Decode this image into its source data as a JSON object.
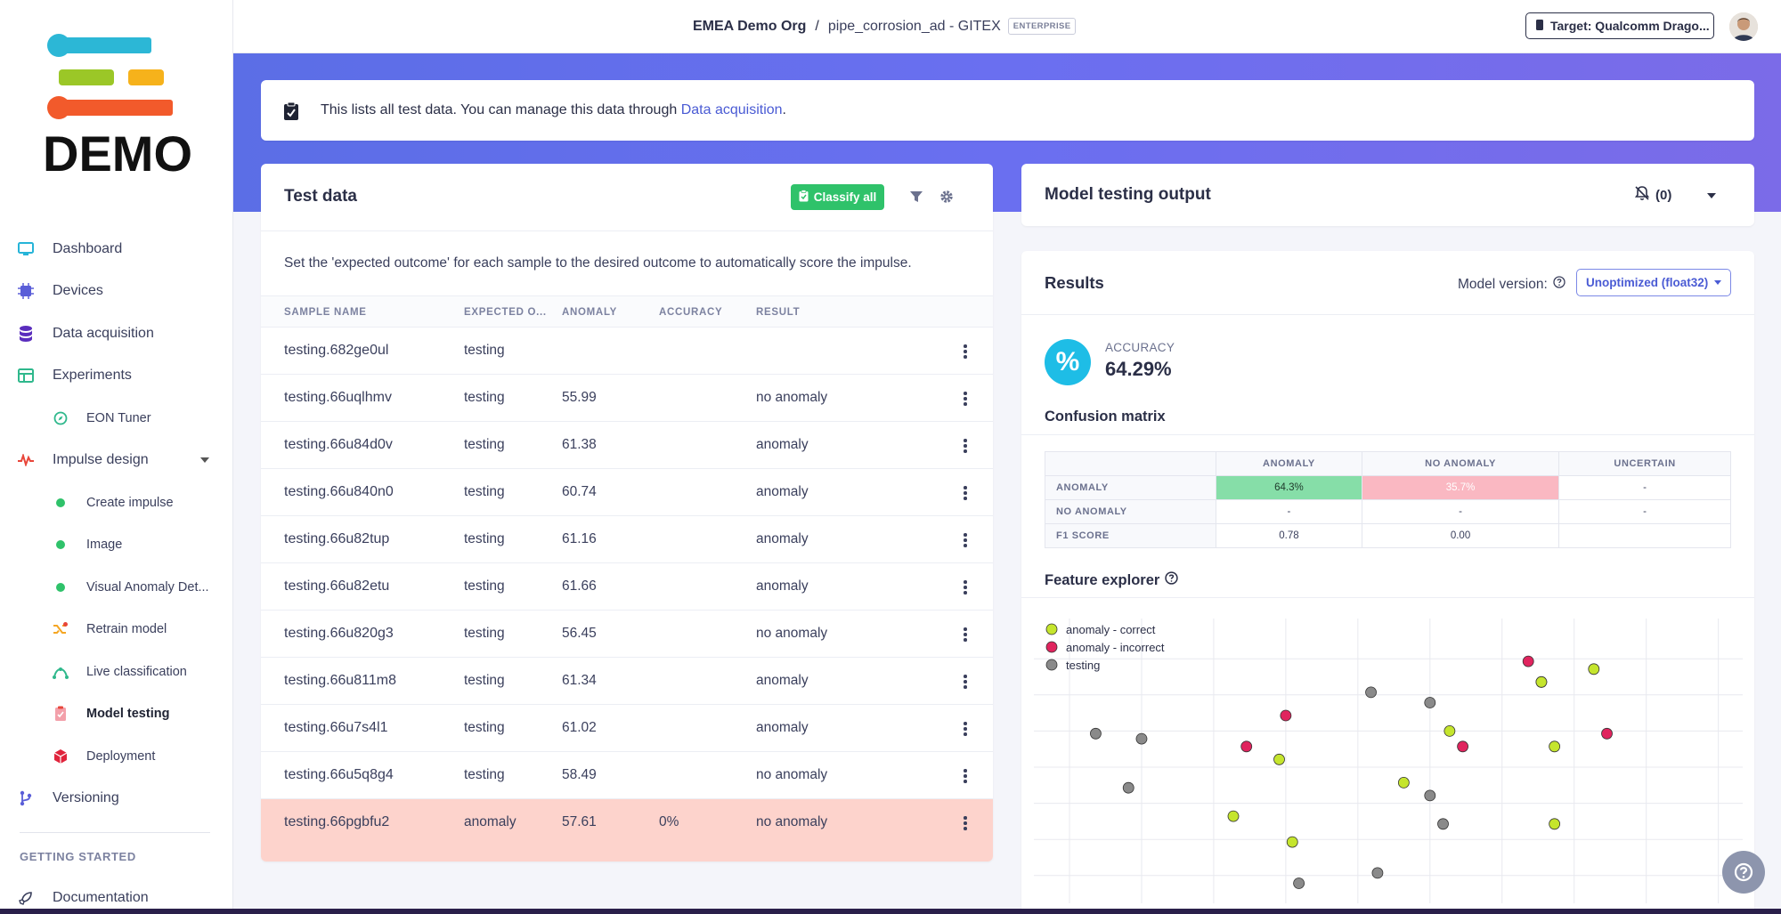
{
  "logo": {
    "text": "DEMO"
  },
  "sidebar": {
    "items": [
      {
        "label": "Dashboard",
        "icon": "monitor-icon"
      },
      {
        "label": "Devices",
        "icon": "chip-icon"
      },
      {
        "label": "Data acquisition",
        "icon": "database-icon"
      },
      {
        "label": "Experiments",
        "icon": "table-icon"
      },
      {
        "label": "EON Tuner",
        "icon": "compass-icon"
      },
      {
        "label": "Impulse design",
        "icon": "pulse-icon"
      },
      {
        "label": "Create impulse",
        "icon": "dot-icon"
      },
      {
        "label": "Image",
        "icon": "dot-icon"
      },
      {
        "label": "Visual Anomaly Det...",
        "icon": "dot-icon"
      },
      {
        "label": "Retrain model",
        "icon": "shuffle-icon"
      },
      {
        "label": "Live classification",
        "icon": "signal-icon"
      },
      {
        "label": "Model testing",
        "icon": "clipboard-icon"
      },
      {
        "label": "Deployment",
        "icon": "box-icon"
      },
      {
        "label": "Versioning",
        "icon": "branch-icon"
      }
    ],
    "section_label": "GETTING STARTED",
    "documentation": "Documentation"
  },
  "header": {
    "org": "EMEA Demo Org",
    "separator": "/",
    "project": "pipe_corrosion_ad - GITEX",
    "badge": "ENTERPRISE",
    "target": "Target: Qualcomm Drago..."
  },
  "info": {
    "text": "This lists all test data. You can manage this data through ",
    "link": "Data acquisition",
    "suffix": "."
  },
  "test_data": {
    "title": "Test data",
    "classify_label": "Classify all",
    "hint": "Set the 'expected outcome' for each sample to the desired outcome to automatically score the impulse.",
    "columns": [
      "SAMPLE NAME",
      "EXPECTED O...",
      "ANOMALY",
      "ACCURACY",
      "RESULT"
    ],
    "rows": [
      {
        "name": "testing.682ge0ul",
        "expected": "testing",
        "anomaly": "",
        "accuracy": "",
        "result": ""
      },
      {
        "name": "testing.66uqlhmv",
        "expected": "testing",
        "anomaly": "55.99",
        "accuracy": "",
        "result": "no anomaly"
      },
      {
        "name": "testing.66u84d0v",
        "expected": "testing",
        "anomaly": "61.38",
        "accuracy": "",
        "result": "anomaly"
      },
      {
        "name": "testing.66u840n0",
        "expected": "testing",
        "anomaly": "60.74",
        "accuracy": "",
        "result": "anomaly"
      },
      {
        "name": "testing.66u82tup",
        "expected": "testing",
        "anomaly": "61.16",
        "accuracy": "",
        "result": "anomaly"
      },
      {
        "name": "testing.66u82etu",
        "expected": "testing",
        "anomaly": "61.66",
        "accuracy": "",
        "result": "anomaly"
      },
      {
        "name": "testing.66u820g3",
        "expected": "testing",
        "anomaly": "56.45",
        "accuracy": "",
        "result": "no anomaly"
      },
      {
        "name": "testing.66u811m8",
        "expected": "testing",
        "anomaly": "61.34",
        "accuracy": "",
        "result": "anomaly"
      },
      {
        "name": "testing.66u7s4l1",
        "expected": "testing",
        "anomaly": "61.02",
        "accuracy": "",
        "result": "anomaly"
      },
      {
        "name": "testing.66u5q8g4",
        "expected": "testing",
        "anomaly": "58.49",
        "accuracy": "",
        "result": "no anomaly"
      },
      {
        "name": "testing.66pgbfu2",
        "expected": "anomaly",
        "anomaly": "57.61",
        "accuracy": "0%",
        "result": "no anomaly"
      }
    ]
  },
  "model_output": {
    "title": "Model testing output",
    "notifications": "(0)"
  },
  "results": {
    "title": "Results",
    "model_version_label": "Model version:",
    "model_version_value": "Unoptimized (float32)",
    "accuracy_label": "ACCURACY",
    "accuracy_value": "64.29%",
    "accuracy_symbol": "%",
    "confusion_title": "Confusion matrix",
    "confusion": {
      "columns": [
        "ANOMALY",
        "NO ANOMALY",
        "UNCERTAIN"
      ],
      "rows": [
        {
          "label": "ANOMALY",
          "cells": [
            "64.3%",
            "35.7%",
            "-"
          ]
        },
        {
          "label": "NO ANOMALY",
          "cells": [
            "-",
            "-",
            "-"
          ]
        },
        {
          "label": "F1 SCORE",
          "cells": [
            "0.78",
            "0.00",
            ""
          ]
        }
      ]
    },
    "feature_title": "Feature explorer"
  },
  "colors": {
    "correct": "#c5e52d",
    "incorrect": "#e0245e",
    "testing": "#8a8a8a"
  },
  "chart_data": {
    "type": "scatter",
    "title": "Feature explorer",
    "xlim": [
      0,
      100
    ],
    "ylim": [
      0,
      100
    ],
    "series": [
      {
        "name": "anomaly - correct",
        "color": "#c5e52d",
        "points": [
          [
            51,
            44
          ],
          [
            25,
            31
          ],
          [
            34,
            21
          ],
          [
            32,
            53
          ],
          [
            58,
            64
          ],
          [
            72,
            83
          ],
          [
            72,
            83
          ],
          [
            74,
            58
          ],
          [
            80,
            88
          ],
          [
            74,
            28
          ]
        ]
      },
      {
        "name": "anomaly - incorrect",
        "color": "#e0245e",
        "points": [
          [
            33,
            70
          ],
          [
            27,
            58
          ],
          [
            70,
            91
          ],
          [
            60,
            58
          ],
          [
            82,
            63
          ]
        ]
      },
      {
        "name": "testing",
        "color": "#8a8a8a",
        "points": [
          [
            4,
            63
          ],
          [
            11,
            61
          ],
          [
            9,
            42
          ],
          [
            46,
            79
          ],
          [
            55,
            75
          ],
          [
            55,
            39
          ],
          [
            57,
            28
          ],
          [
            35,
            5
          ],
          [
            47,
            9
          ]
        ]
      }
    ],
    "legend": [
      "anomaly - correct",
      "anomaly - incorrect",
      "testing"
    ],
    "legend_position": "top-left",
    "grid": true
  }
}
